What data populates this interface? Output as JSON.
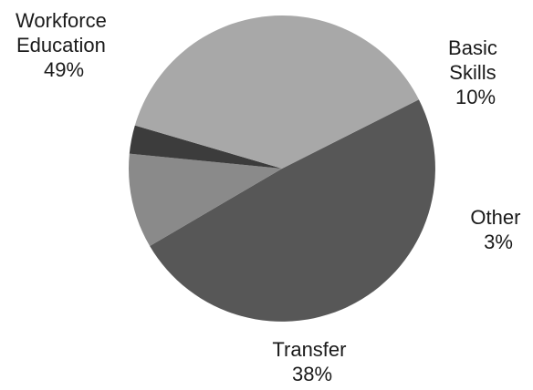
{
  "chart_data": {
    "type": "pie",
    "title": "",
    "slices": [
      {
        "label_lines": [
          "Workforce",
          "Education"
        ],
        "percent_label": "49%",
        "value": 49,
        "color": "#575757"
      },
      {
        "label_lines": [
          "Basic",
          "Skills"
        ],
        "percent_label": "10%",
        "value": 10,
        "color": "#8a8a8a"
      },
      {
        "label_lines": [
          "Other"
        ],
        "percent_label": "3%",
        "value": 3,
        "color": "#3c3c3c"
      },
      {
        "label_lines": [
          "Transfer"
        ],
        "percent_label": "38%",
        "value": 38,
        "color": "#a8a8a8"
      }
    ],
    "legend": "none"
  }
}
